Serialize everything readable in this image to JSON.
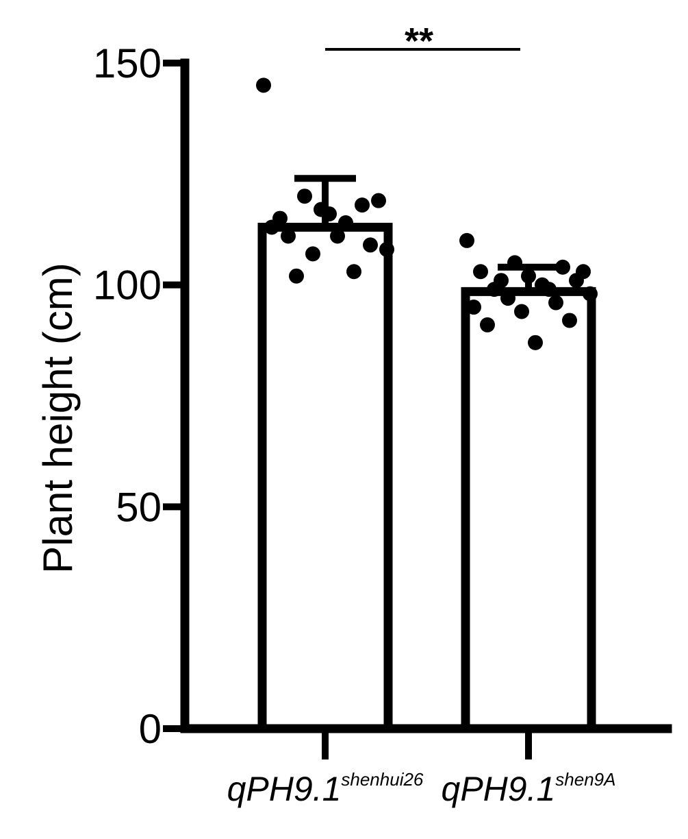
{
  "chart_data": {
    "type": "bar",
    "title": "",
    "xlabel": "",
    "ylabel": "Plant height (cm)",
    "ylim": [
      0,
      150
    ],
    "yticks": [
      0,
      50,
      100,
      150
    ],
    "grid": false,
    "categories": [
      {
        "base": "qPH9.1",
        "sup": "shenhui26"
      },
      {
        "base": "qPH9.1",
        "sup": "shen9A"
      }
    ],
    "values": [
      113,
      98.5
    ],
    "error_upper": [
      124,
      104
    ],
    "points": [
      [
        145,
        117,
        119,
        120,
        118,
        111,
        114,
        113,
        116,
        108,
        107,
        109,
        102,
        103,
        115,
        111
      ],
      [
        110,
        105,
        104,
        103,
        102,
        101,
        99,
        100,
        98,
        97,
        96,
        95,
        94,
        92,
        91,
        87,
        103,
        101,
        99
      ]
    ],
    "significance": {
      "label": "**",
      "between": [
        0,
        1
      ]
    }
  }
}
